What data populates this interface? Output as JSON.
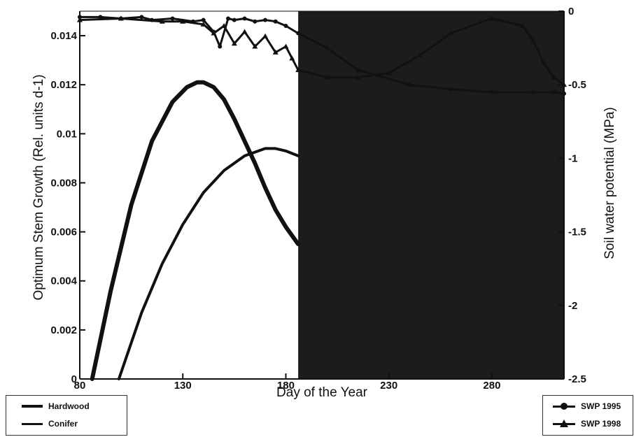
{
  "chart_data": {
    "type": "line",
    "xlabel": "Day of  the Year",
    "ylabel_left": "Optimum Stem Growth (Rel. units d-1)",
    "ylabel_right": "Soil water potential (MPa)",
    "xlim": [
      80,
      315
    ],
    "ylim_left": [
      0,
      0.015
    ],
    "ylim_right": [
      -2.5,
      0
    ],
    "x_ticks": [
      "80",
      "130",
      "180",
      "230",
      "280"
    ],
    "x_tick_values": [
      80,
      130,
      180,
      230,
      280
    ],
    "y_left_ticks": [
      "0",
      "0.002",
      "0.004",
      "0.006",
      "0.008",
      "0.01",
      "0.012",
      "0.014"
    ],
    "y_left_tick_values": [
      0,
      0.002,
      0.004,
      0.006,
      0.008,
      0.01,
      0.012,
      0.014
    ],
    "y_right_ticks": [
      "0",
      "-0.5",
      "-1",
      "-1.5",
      "-2",
      "-2.5"
    ],
    "y_right_tick_values": [
      0,
      -0.5,
      -1,
      -1.5,
      -2,
      -2.5
    ],
    "shaded_region": {
      "x_start": 186,
      "x_end": 315,
      "color": "#1c1c1c"
    },
    "grid": false,
    "series": [
      {
        "name": "Hardwood",
        "axis": "left",
        "style": "thick",
        "x": [
          86,
          95,
          105,
          115,
          125,
          132,
          137,
          140,
          145,
          150,
          155,
          160,
          165,
          170,
          175,
          180,
          186
        ],
        "y": [
          0,
          0.0036,
          0.0071,
          0.0097,
          0.0113,
          0.0119,
          0.0121,
          0.0121,
          0.0119,
          0.0114,
          0.0106,
          0.0097,
          0.0088,
          0.0078,
          0.0069,
          0.0062,
          0.0055
        ]
      },
      {
        "name": "Conifer",
        "axis": "left",
        "style": "thin",
        "x": [
          99,
          110,
          120,
          130,
          140,
          150,
          160,
          170,
          175,
          180,
          186
        ],
        "y": [
          0,
          0.0027,
          0.0047,
          0.0063,
          0.0076,
          0.0085,
          0.0091,
          0.0094,
          0.0094,
          0.0093,
          0.0091
        ]
      },
      {
        "name": "SWP 1995",
        "axis": "right",
        "marker": "circle",
        "x": [
          80,
          90,
          100,
          110,
          115,
          125,
          135,
          140,
          145,
          148,
          152,
          155,
          160,
          165,
          170,
          175,
          180,
          186,
          200,
          215,
          240,
          260,
          280,
          300,
          310,
          315
        ],
        "y": [
          -0.04,
          -0.04,
          -0.05,
          -0.04,
          -0.06,
          -0.05,
          -0.07,
          -0.06,
          -0.14,
          -0.24,
          -0.05,
          -0.06,
          -0.05,
          -0.07,
          -0.06,
          -0.07,
          -0.1,
          -0.15,
          -0.25,
          -0.4,
          -0.5,
          -0.53,
          -0.55,
          -0.55,
          -0.55,
          -0.56
        ]
      },
      {
        "name": "SWP 1998",
        "axis": "right",
        "marker": "triangle",
        "x": [
          80,
          100,
          120,
          130,
          140,
          145,
          150,
          155,
          160,
          165,
          170,
          175,
          180,
          183,
          186,
          200,
          215,
          230,
          245,
          260,
          280,
          295,
          300,
          305,
          310,
          315
        ],
        "y": [
          -0.06,
          -0.05,
          -0.07,
          -0.07,
          -0.09,
          -0.15,
          -0.1,
          -0.22,
          -0.14,
          -0.24,
          -0.17,
          -0.28,
          -0.24,
          -0.32,
          -0.4,
          -0.45,
          -0.45,
          -0.42,
          -0.3,
          -0.15,
          -0.05,
          -0.1,
          -0.2,
          -0.35,
          -0.45,
          -0.5
        ]
      }
    ]
  },
  "legend_left": [
    {
      "label": "Hardwood",
      "style": "thick"
    },
    {
      "label": "Conifer",
      "style": "thin"
    }
  ],
  "legend_right": [
    {
      "label": "SWP 1995",
      "marker": "circle"
    },
    {
      "label": "SWP 1998",
      "marker": "triangle"
    }
  ]
}
